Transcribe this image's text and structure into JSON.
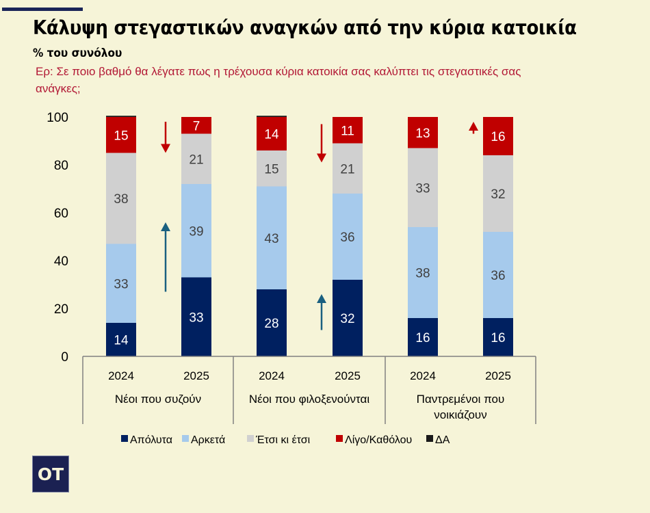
{
  "header": {
    "title": "Κάλυψη στεγαστικών αναγκών από την κύρια κατοικία",
    "subtitle": "% του συνόλου",
    "question": "Ερ: Σε ποιο βαθμό θα λέγατε πως η τρέχουσα κύρια κατοικία σας καλύπτει τις στεγαστικές σας ανάγκες;"
  },
  "logo": {
    "text": "OT"
  },
  "colors": {
    "background": "#f6f4d8",
    "Απόλυτα": "#002060",
    "Αρκετά": "#a6caec",
    "Έτσι κι έτσι": "#d0d0d0",
    "Λίγο/Καθόλου": "#c00000",
    "ΔΑ": "#1a1a1a",
    "arrow_up_blue": "#1a6080",
    "arrow_red": "#c00000"
  },
  "chart_data": {
    "type": "bar",
    "stacked": true,
    "title": "Κάλυψη στεγαστικών αναγκών από την κύρια κατοικία",
    "subtitle": "% του συνόλου",
    "ylim": [
      0,
      100
    ],
    "yticks": [
      0,
      20,
      40,
      60,
      80,
      100
    ],
    "grid": false,
    "legend_position": "bottom",
    "groups": [
      "Νέοι που συζούν",
      "Νέοι που φιλοξενούνται",
      "Παντρεμένοι  που νοικιάζουν"
    ],
    "categories": [
      "2024",
      "2025",
      "2024",
      "2025",
      "2024",
      "2025"
    ],
    "series": [
      {
        "name": "Απόλυτα",
        "values": [
          14,
          33,
          28,
          32,
          16,
          16
        ],
        "label_color": "#ffffff"
      },
      {
        "name": "Αρκετά",
        "values": [
          33,
          39,
          43,
          36,
          38,
          36
        ],
        "label_color": "#404040"
      },
      {
        "name": "Έτσι κι έτσι",
        "values": [
          38,
          21,
          15,
          21,
          33,
          32
        ],
        "label_color": "#404040"
      },
      {
        "name": "Λίγο/Καθόλου",
        "values": [
          15,
          7,
          14,
          11,
          13,
          16
        ],
        "label_color": "#ffffff"
      },
      {
        "name": "ΔΑ",
        "values": [
          0.5,
          0,
          0.5,
          0,
          0,
          0
        ],
        "label_color": "#ffffff",
        "show_labels": false
      }
    ],
    "annotations": [
      {
        "type": "arrow",
        "direction": "down",
        "color": "red",
        "group": 0,
        "from": 98,
        "to": 85
      },
      {
        "type": "arrow",
        "direction": "up",
        "color": "blue",
        "group": 0,
        "from": 27,
        "to": 56
      },
      {
        "type": "arrow",
        "direction": "down",
        "color": "red",
        "group": 1,
        "from": 97,
        "to": 81
      },
      {
        "type": "arrow",
        "direction": "up",
        "color": "blue",
        "group": 1,
        "from": 11,
        "to": 26
      },
      {
        "type": "arrow",
        "direction": "up",
        "color": "red",
        "group": 2,
        "from": 93,
        "to": 98
      }
    ]
  }
}
